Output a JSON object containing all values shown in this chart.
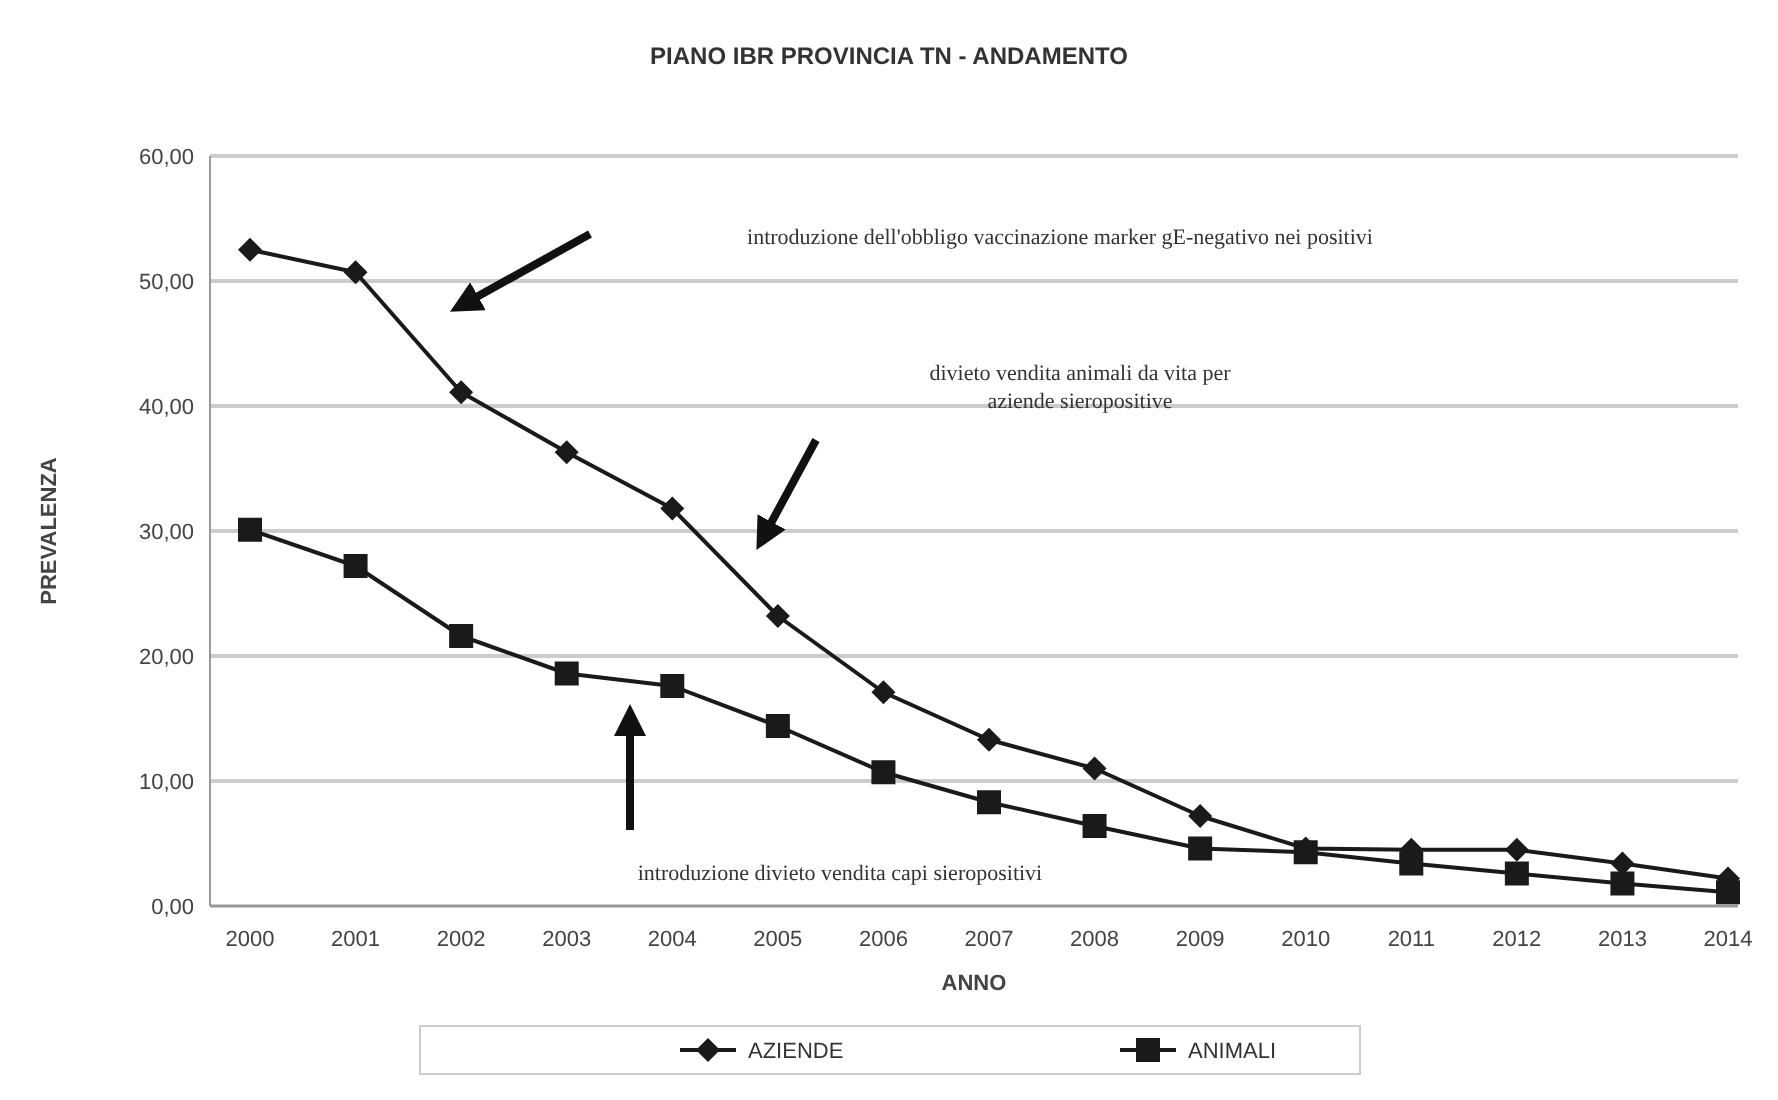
{
  "chart_data": {
    "type": "line",
    "title": "PIANO IBR PROVINCIA TN - ANDAMENTO",
    "xlabel": "ANNO",
    "ylabel": "PREVALENZA",
    "categories": [
      "2000",
      "2001",
      "2002",
      "2003",
      "2004",
      "2005",
      "2006",
      "2007",
      "2008",
      "2009",
      "2010",
      "2011",
      "2012",
      "2013",
      "2014"
    ],
    "series": [
      {
        "name": "AZIENDE",
        "color": "#1a1a1a",
        "marker": "diamond",
        "values": [
          52.5,
          50.7,
          41.1,
          36.3,
          31.8,
          23.2,
          17.1,
          13.3,
          11.0,
          7.2,
          4.6,
          4.5,
          4.5,
          3.4,
          2.2
        ]
      },
      {
        "name": "ANIMALI",
        "color": "#1a1a1a",
        "marker": "square",
        "values": [
          30.1,
          27.2,
          21.6,
          18.6,
          17.6,
          14.4,
          10.7,
          8.3,
          6.4,
          4.6,
          4.3,
          3.4,
          2.6,
          1.8,
          1.1
        ]
      }
    ],
    "ylim": [
      0,
      60
    ],
    "yticks": [
      {
        "value": 0,
        "label": "0,00"
      },
      {
        "value": 10,
        "label": "10,00"
      },
      {
        "value": 20,
        "label": "20,00"
      },
      {
        "value": 30,
        "label": "30,00"
      },
      {
        "value": 40,
        "label": "40,00"
      },
      {
        "value": 50,
        "label": "50,00"
      },
      {
        "value": 60,
        "label": "60,00"
      }
    ],
    "grid": "y",
    "legend": "bottom",
    "line_style": "solid",
    "annotations": [
      "introduzione dell'obbligo vaccinazione marker gE-negativo nei positivi",
      "divieto vendita animali da vita per aziende sieropositive",
      "introduzione divieto vendita capi sieropositivi"
    ]
  }
}
